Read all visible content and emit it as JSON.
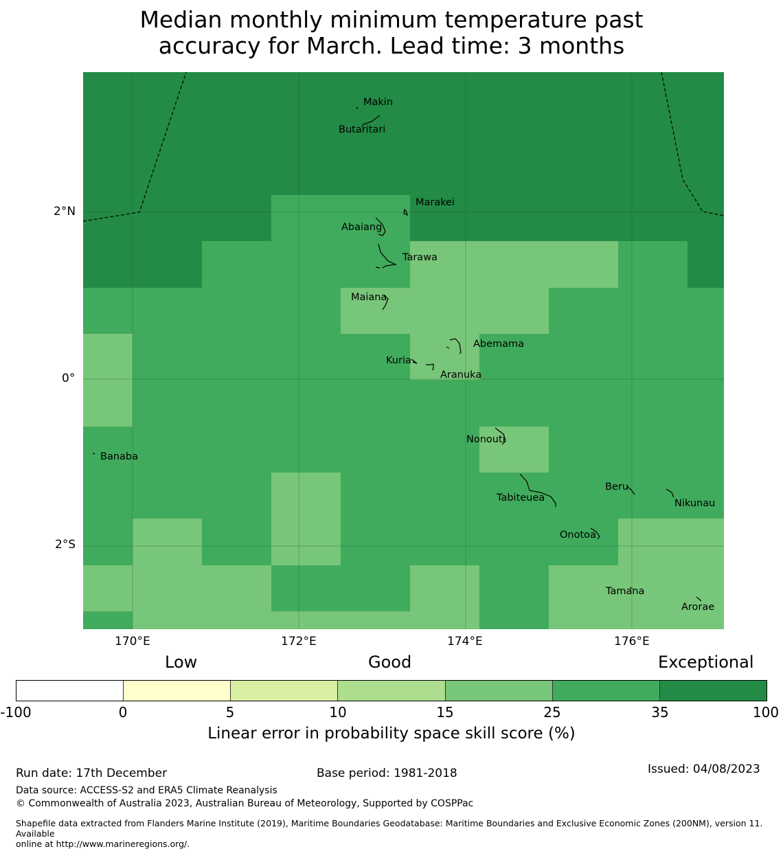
{
  "title": {
    "line1": "Median monthly minimum temperature past",
    "line2": "accuracy for March. Lead time: 3 months"
  },
  "map": {
    "lon_range": [
      169.4,
      177.1
    ],
    "lat_range": [
      -2.99,
      3.7
    ],
    "x_ticks": [
      "170°E",
      "172°E",
      "174°E",
      "176°E"
    ],
    "y_ticks": [
      "2°N",
      "0°",
      "2°S"
    ],
    "colors": {
      "exceptional": "#238b45",
      "band_25_35": "#41ab5d",
      "band_15_25": "#78c679"
    },
    "islands": [
      "Makin",
      "Butaritari",
      "Marakei",
      "Abaiang",
      "Tarawa",
      "Maiana",
      "Abemama",
      "Kuria",
      "Aranuka",
      "Nonouti",
      "Banaba",
      "Tabiteuea",
      "Beru",
      "Nikunau",
      "Onotoa",
      "Tamana",
      "Arorae"
    ]
  },
  "legend": {
    "categories": [
      "Low",
      "Good",
      "Exceptional"
    ],
    "colors": [
      "#ffffff",
      "#ffffcc",
      "#d9f0a3",
      "#addd8e",
      "#78c679",
      "#41ab5d",
      "#238b45"
    ],
    "ticks": [
      "-100",
      "0",
      "5",
      "10",
      "15",
      "25",
      "35",
      "100"
    ],
    "label": "Linear error in probability space skill score (%)"
  },
  "footer": {
    "run_date": "Run date: 17th December",
    "base_period": "Base period: 1981-2018",
    "issued": "Issued: 04/08/2023",
    "data_source": "Data source: ACCESS-S2 and ERA5 Climate Reanalysis",
    "copyright": "© Commonwealth of Australia 2023, Australian Bureau of Meteorology, Supported by COSPPac",
    "shapefile_line1": "Shapefile data extracted from Flanders Marine Institute (2019), Maritime Boundaries Geodatabase: Maritime Boundaries and Exclusive Economic Zones (200NM), version 11. Available",
    "shapefile_line2": "online at http://www.marineregions.org/."
  }
}
